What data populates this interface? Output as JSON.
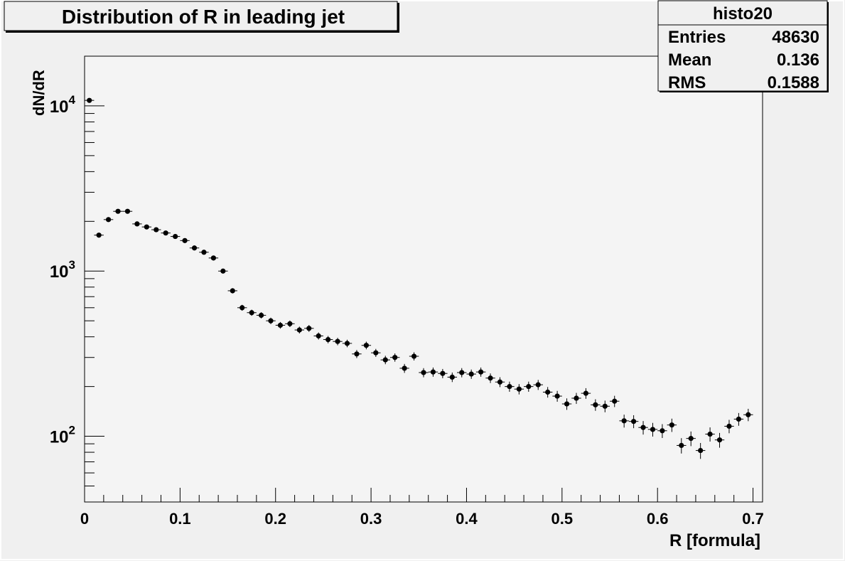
{
  "chart_data": {
    "type": "scatter",
    "title": "Distribution of R in leading jet",
    "xlabel": "R [formula]",
    "ylabel": "dN/dR",
    "xlim": [
      0,
      0.71
    ],
    "ylim": [
      40,
      20000
    ],
    "y_scale": "log",
    "x_ticks": [
      "0",
      "0.1",
      "0.2",
      "0.3",
      "0.4",
      "0.5",
      "0.6",
      "0.7"
    ],
    "y_ticks": [
      {
        "base": "10",
        "exp": "2"
      },
      {
        "base": "10",
        "exp": "3"
      },
      {
        "base": "10",
        "exp": "4"
      }
    ],
    "legend_position": "top-right",
    "stats": {
      "name": "histo20",
      "rows": [
        {
          "label": "Entries",
          "value": "48630"
        },
        {
          "label": "Mean",
          "value": "0.136"
        },
        {
          "label": "RMS",
          "value": "0.1588"
        }
      ]
    },
    "bin_width": 0.01,
    "series": [
      {
        "x": [
          0.005,
          0.015,
          0.025,
          0.035,
          0.045,
          0.055,
          0.065,
          0.075,
          0.085,
          0.095,
          0.105,
          0.115,
          0.125,
          0.135,
          0.145,
          0.155,
          0.165,
          0.175,
          0.185,
          0.195,
          0.205,
          0.215,
          0.225,
          0.235,
          0.245,
          0.255,
          0.265,
          0.275,
          0.285,
          0.295,
          0.305,
          0.315,
          0.325,
          0.335,
          0.345,
          0.355,
          0.365,
          0.375,
          0.385,
          0.395,
          0.405,
          0.415,
          0.425,
          0.435,
          0.445,
          0.455,
          0.465,
          0.475,
          0.485,
          0.495,
          0.505,
          0.515,
          0.525,
          0.535,
          0.545,
          0.555,
          0.565,
          0.575,
          0.585,
          0.595,
          0.605,
          0.615,
          0.625,
          0.635,
          0.645,
          0.655,
          0.665,
          0.675,
          0.685,
          0.695
        ],
        "y": [
          10800,
          1650,
          2050,
          2300,
          2300,
          1930,
          1850,
          1780,
          1700,
          1620,
          1530,
          1380,
          1300,
          1200,
          1000,
          760,
          600,
          560,
          540,
          500,
          470,
          480,
          440,
          450,
          405,
          385,
          375,
          365,
          315,
          355,
          320,
          290,
          300,
          258,
          305,
          243,
          245,
          240,
          228,
          243,
          238,
          245,
          225,
          213,
          200,
          193,
          200,
          205,
          185,
          175,
          157,
          170,
          182,
          155,
          152,
          163,
          124,
          123,
          113,
          110,
          108,
          117,
          88,
          97,
          82,
          103,
          95,
          115,
          127,
          135
        ]
      }
    ]
  }
}
